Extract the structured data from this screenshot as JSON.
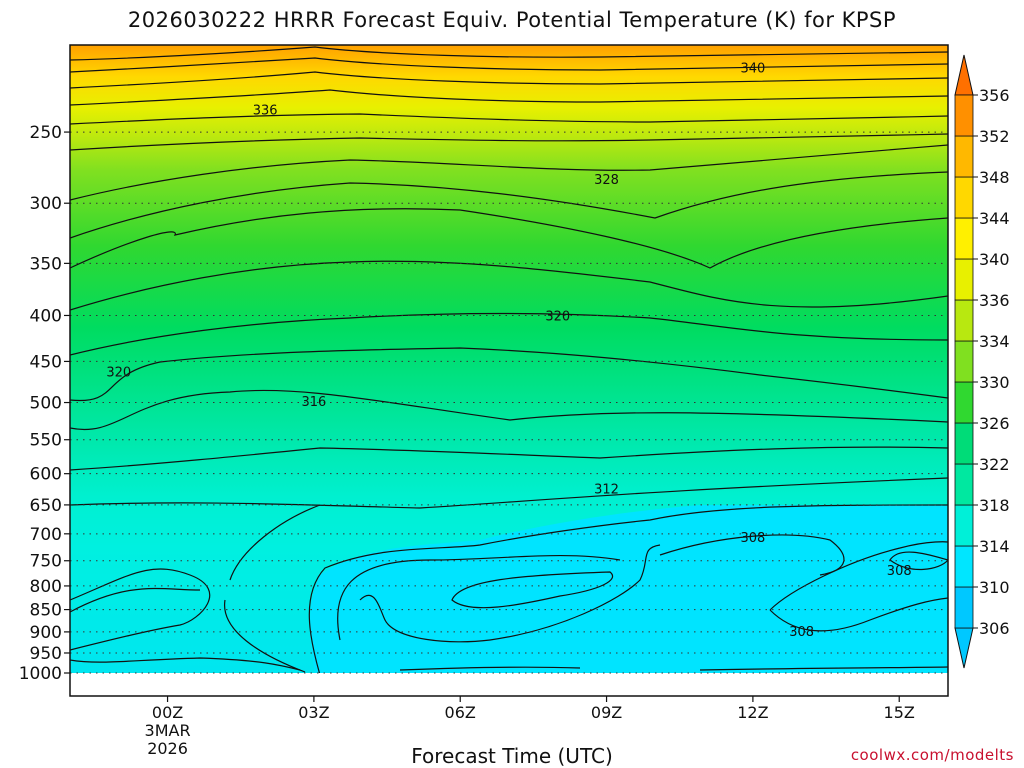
{
  "chart_data": {
    "type": "heatmap",
    "title": "2026030222 HRRR Forecast Equiv. Potential Temperature (K) for KPSP",
    "xlabel": "Forecast Time (UTC)",
    "ylabel": "",
    "x_ticks": [
      {
        "label": "00Z",
        "sub": [
          "3MAR",
          "2026"
        ]
      },
      {
        "label": "03Z",
        "sub": []
      },
      {
        "label": "06Z",
        "sub": []
      },
      {
        "label": "09Z",
        "sub": []
      },
      {
        "label": "12Z",
        "sub": []
      },
      {
        "label": "15Z",
        "sub": []
      }
    ],
    "x_range_hours": [
      -2,
      16
    ],
    "y_axis": "pressure (hPa), inverted",
    "y_ticks": [
      "250",
      "300",
      "350",
      "400",
      "450",
      "500",
      "550",
      "600",
      "650",
      "700",
      "750",
      "800",
      "850",
      "900",
      "950",
      "1000"
    ],
    "ylim": [
      1000,
      200
    ],
    "grid": "dotted horizontal at pressure levels",
    "colorbar": {
      "position": "right",
      "levels": [
        "306",
        "310",
        "314",
        "318",
        "322",
        "326",
        "330",
        "334",
        "336",
        "340",
        "344",
        "348",
        "352",
        "356"
      ],
      "colors": [
        "#00c8ff",
        "#00e6ff",
        "#00f0d8",
        "#00e8a0",
        "#00dc78",
        "#30d830",
        "#80e020",
        "#b8e810",
        "#e8f000",
        "#fff000",
        "#ffd800",
        "#ffb800",
        "#ff9000",
        "#ff7000"
      ],
      "extend": "both"
    },
    "contour_labels": [
      {
        "text": "340",
        "t": 12,
        "p": 212
      },
      {
        "text": "336",
        "t": 2,
        "p": 236
      },
      {
        "text": "328",
        "t": 9,
        "p": 282
      },
      {
        "text": "320",
        "t": 8,
        "p": 400
      },
      {
        "text": "320",
        "t": -1,
        "p": 462
      },
      {
        "text": "316",
        "t": 3,
        "p": 498
      },
      {
        "text": "312",
        "t": 9,
        "p": 623
      },
      {
        "text": "308",
        "t": 12,
        "p": 706
      },
      {
        "text": "308",
        "t": 15,
        "p": 768
      },
      {
        "text": "308",
        "t": 13,
        "p": 898
      }
    ],
    "ground_color": "#a0522d",
    "surface_pressure": 1000
  },
  "credit": "coolwx.com/modelts"
}
